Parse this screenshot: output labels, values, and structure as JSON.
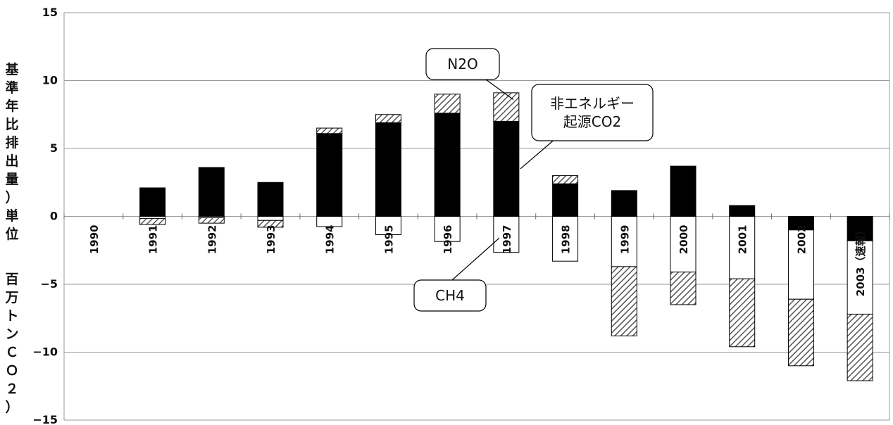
{
  "chart_data": {
    "type": "bar",
    "title": "",
    "xlabel": "",
    "ylabel": "基準年比排出量（単位　百万トンＣＯ２）",
    "ylabel_parts": [
      "基準年比排出量）単位",
      "百万トンＣＯ２）"
    ],
    "ylim": [
      -15,
      15
    ],
    "yticks": [
      15,
      10,
      5,
      0,
      -5,
      -10,
      -15
    ],
    "ytick_labels": [
      "15",
      "10",
      "5",
      "0",
      "−5",
      "−10",
      "−15"
    ],
    "grid": true,
    "legend": "none",
    "categories": [
      "1990",
      "1991",
      "1992",
      "1993",
      "1994",
      "1995",
      "1996",
      "1997",
      "1998",
      "1999",
      "2000",
      "2001",
      "2002",
      "2003"
    ],
    "category_labels": [
      "1990",
      "1991",
      "1992",
      "1993",
      "1994",
      "1995",
      "1996",
      "1997",
      "1998",
      "1999",
      "2000",
      "2001",
      "2002",
      "2003（速報）"
    ],
    "segments": {
      "positive": [
        {
          "values": [
            0,
            2.1,
            3.6,
            2.5,
            6.1,
            6.9,
            7.6,
            7.0,
            2.4,
            1.9,
            3.7,
            0.8,
            0,
            0
          ],
          "fill": "#000000",
          "pattern": "solid"
        },
        {
          "values": [
            0,
            0,
            0,
            0,
            0.4,
            0.6,
            1.4,
            2.1,
            0.6,
            0,
            0,
            0,
            0,
            0
          ],
          "fill": "#888888",
          "pattern": "hatch"
        }
      ],
      "negative": [
        {
          "values": [
            0,
            0,
            0,
            0,
            0,
            0,
            0,
            0,
            0,
            0,
            0,
            0,
            1.0,
            1.8
          ],
          "fill": "#000000",
          "pattern": "solid"
        },
        {
          "values": [
            0,
            0.15,
            0.1,
            0.3,
            0.75,
            1.35,
            1.85,
            2.65,
            3.3,
            3.7,
            4.1,
            4.6,
            5.1,
            5.4
          ],
          "fill": "#ffffff",
          "pattern": "white"
        },
        {
          "values": [
            0,
            0.45,
            0.4,
            0.5,
            0,
            0,
            0,
            0,
            0,
            5.1,
            2.4,
            5.0,
            4.9,
            4.9
          ],
          "fill": "#888888",
          "pattern": "hatch"
        }
      ]
    },
    "annotations": [
      {
        "text": "N2O",
        "target_category": "1997",
        "target_value": 8.6
      },
      {
        "text": "非エネルギー\n起源CO2",
        "target_category": "1997",
        "target_value": 3.5
      },
      {
        "text": "CH4",
        "target_category": "1997",
        "target_value": -1.6
      }
    ]
  }
}
